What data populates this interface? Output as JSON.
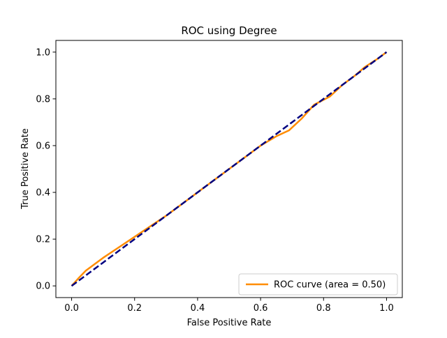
{
  "chart_data": {
    "type": "line",
    "title": "ROC using Degree",
    "xlabel": "False Positive Rate",
    "ylabel": "True Positive Rate",
    "xlim": [
      -0.05,
      1.05
    ],
    "ylim": [
      -0.05,
      1.05
    ],
    "xticks": [
      0.0,
      0.2,
      0.4,
      0.6,
      0.8,
      1.0
    ],
    "yticks": [
      0.0,
      0.2,
      0.4,
      0.6,
      0.8,
      1.0
    ],
    "xtick_labels": [
      "0.0",
      "0.2",
      "0.4",
      "0.6",
      "0.8",
      "1.0"
    ],
    "ytick_labels": [
      "0.0",
      "0.2",
      "0.4",
      "0.6",
      "0.8",
      "1.0"
    ],
    "grid": false,
    "legend_position": "lower-right",
    "series": [
      {
        "name": "ROC curve (area = 0.50)",
        "color": "#ff8c00",
        "style": "solid",
        "x": [
          0.0,
          0.02,
          0.045,
          0.07,
          0.1,
          0.15,
          0.2,
          0.25,
          0.3,
          0.35,
          0.4,
          0.45,
          0.5,
          0.55,
          0.6,
          0.65,
          0.69,
          0.73,
          0.77,
          0.82,
          0.86,
          0.9,
          0.93,
          0.97,
          1.0
        ],
        "y": [
          0.0,
          0.03,
          0.065,
          0.09,
          0.12,
          0.165,
          0.21,
          0.255,
          0.3,
          0.35,
          0.4,
          0.45,
          0.5,
          0.55,
          0.6,
          0.64,
          0.665,
          0.715,
          0.775,
          0.81,
          0.86,
          0.9,
          0.935,
          0.97,
          1.0
        ]
      },
      {
        "color": "#000080",
        "style": "dashed",
        "x": [
          0.0,
          1.0
        ],
        "y": [
          0.0,
          1.0
        ]
      }
    ]
  }
}
